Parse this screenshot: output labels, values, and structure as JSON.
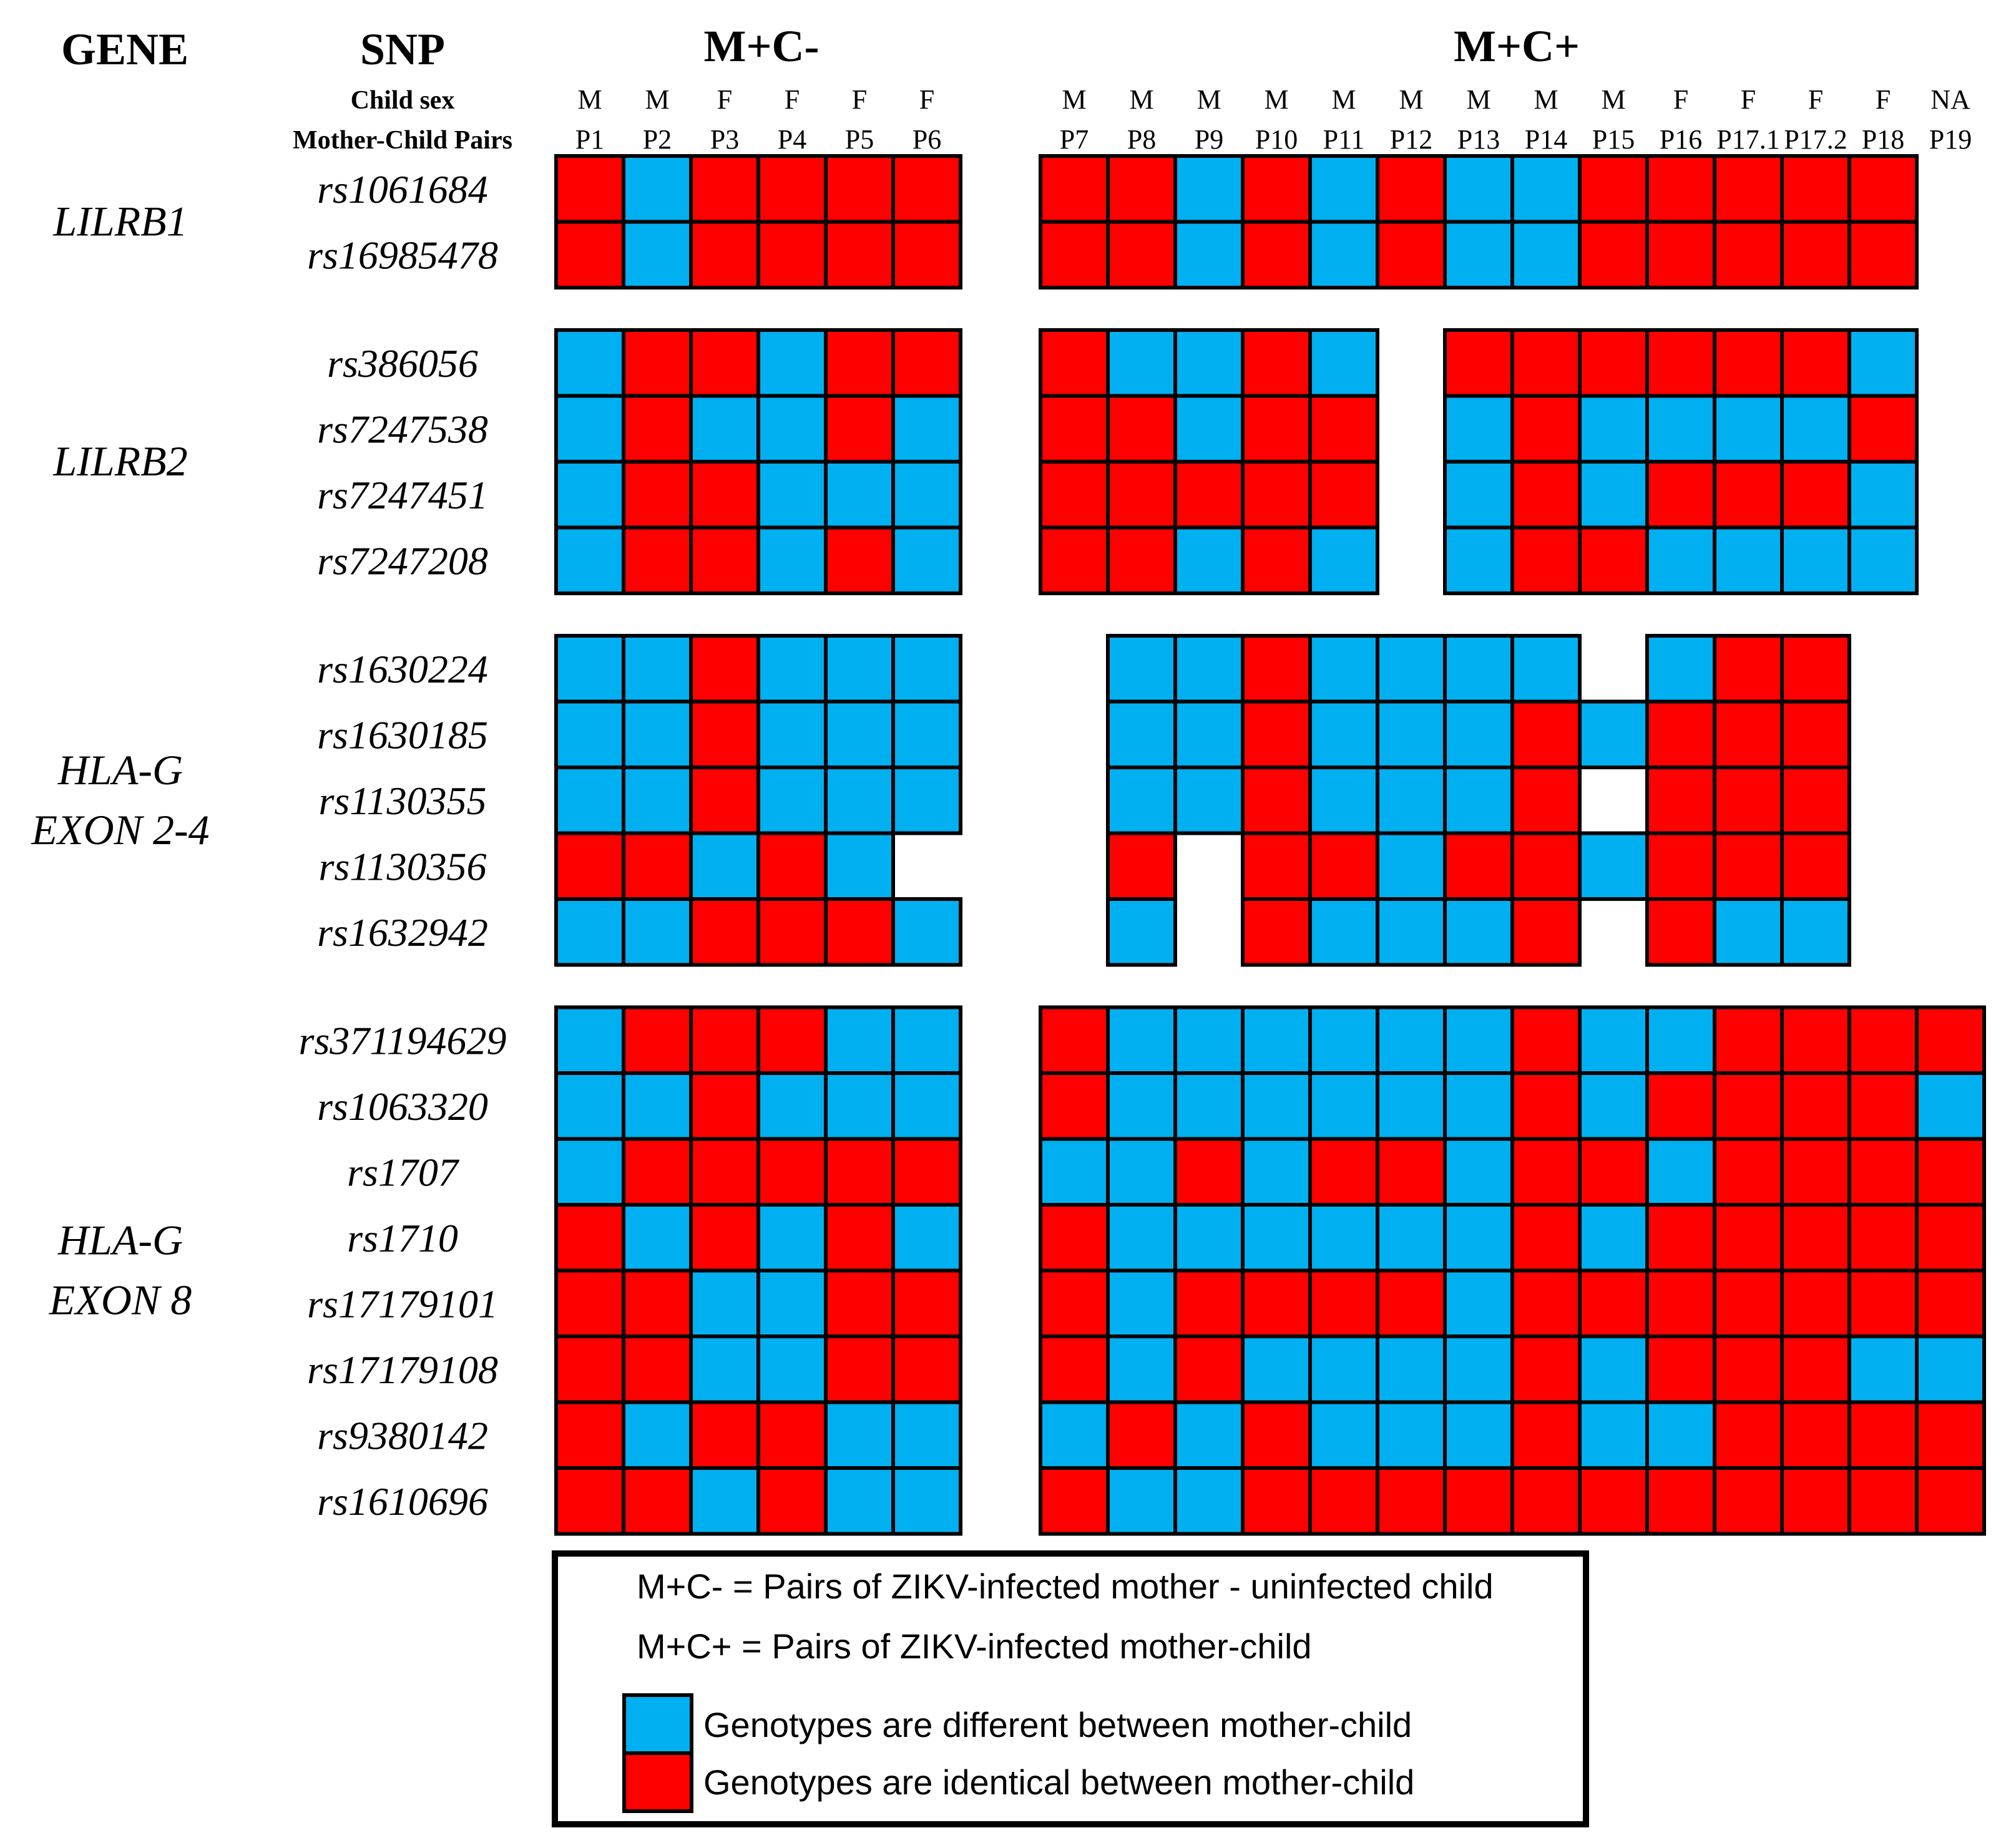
{
  "colors": {
    "different": "#00B0F0",
    "identical": "#FF0000",
    "border": "#000000"
  },
  "chart_data": {
    "type": "heatmap",
    "headers": {
      "gene": "GENE",
      "snp": "SNP",
      "child_sex_label": "Child sex",
      "pairs_label": "Mother-Child Pairs"
    },
    "groups": [
      {
        "label": "M+C-",
        "pairs": [
          "P1",
          "P2",
          "P3",
          "P4",
          "P5",
          "P6"
        ],
        "sex": [
          "M",
          "M",
          "F",
          "F",
          "F",
          "F"
        ]
      },
      {
        "label": "M+C+",
        "pairs": [
          "P7",
          "P8",
          "P9",
          "P10",
          "P11",
          "P12",
          "P13",
          "P14",
          "P15",
          "P16",
          "P17.1",
          "P17.2",
          "P18",
          "P19"
        ],
        "sex": [
          "M",
          "M",
          "M",
          "M",
          "M",
          "M",
          "M",
          "M",
          "M",
          "F",
          "F",
          "F",
          "F",
          "NA"
        ]
      }
    ],
    "value_codes": {
      "R": "identical",
      "B": "different",
      "-": "missing"
    },
    "genes": [
      {
        "name_lines": [
          "LILRB1"
        ],
        "snps": [
          {
            "id": "rs1061684",
            "mc_neg": "RBRRRR",
            "mc_pos": "RRBRBRBBRRRRR-"
          },
          {
            "id": "rs16985478",
            "mc_neg": "RBRRRR",
            "mc_pos": "RRBRBRBBRRRRR-"
          }
        ]
      },
      {
        "name_lines": [
          "LILRB2"
        ],
        "snps": [
          {
            "id": "rs386056",
            "mc_neg": "BRRBRR",
            "mc_pos": "RBBRB-RRRRRRB-"
          },
          {
            "id": "rs7247538",
            "mc_neg": "BRBBRB",
            "mc_pos": "RRBRR-BRBBBBR-"
          },
          {
            "id": "rs7247451",
            "mc_neg": "BRRBBB",
            "mc_pos": "RRRRR-BRBRRRB-"
          },
          {
            "id": "rs7247208",
            "mc_neg": "BRRBRB",
            "mc_pos": "RRBRB-BRRBBBB-"
          }
        ]
      },
      {
        "name_lines": [
          "HLA-G",
          "EXON 2-4"
        ],
        "snps": [
          {
            "id": "rs1630224",
            "mc_neg": "BBRBBB",
            "mc_pos": "-BBRBBBB-BRR--"
          },
          {
            "id": "rs1630185",
            "mc_neg": "BBRBBB",
            "mc_pos": "-BBRBBBRBRRR--"
          },
          {
            "id": "rs1130355",
            "mc_neg": "BBRBBB",
            "mc_pos": "-BBRBBBR-RRR--"
          },
          {
            "id": "rs1130356",
            "mc_neg": "RRBRB-",
            "mc_pos": "-R-RRBRRBRRR--"
          },
          {
            "id": "rs1632942",
            "mc_neg": "BBRRRB",
            "mc_pos": "-B-RBBBR-RBB--"
          }
        ]
      },
      {
        "name_lines": [
          "HLA-G",
          "EXON 8"
        ],
        "snps": [
          {
            "id": "rs371194629",
            "mc_neg": "BRRRBB",
            "mc_pos": "RBBBBBBRBBRRRR"
          },
          {
            "id": "rs1063320",
            "mc_neg": "BBRBBB",
            "mc_pos": "RBBBBBBRBRRRRB"
          },
          {
            "id": "rs1707",
            "mc_neg": "BRRRRR",
            "mc_pos": "BBRBRRBRRBRRRR"
          },
          {
            "id": "rs1710",
            "mc_neg": "RBRBRB",
            "mc_pos": "RBBBBBBRBRRRRR"
          },
          {
            "id": "rs17179101",
            "mc_neg": "RRBBRR",
            "mc_pos": "RBRRRRBRRRRRRR"
          },
          {
            "id": "rs17179108",
            "mc_neg": "RRBBRR",
            "mc_pos": "RBRBBBBRBRRRBB"
          },
          {
            "id": "rs9380142",
            "mc_neg": "RBRRBB",
            "mc_pos": "BRBRBBBRBBRRRR"
          },
          {
            "id": "rs1610696",
            "mc_neg": "RRBRBB",
            "mc_pos": "RBBRRRRRRRRRRR"
          }
        ]
      }
    ],
    "legend": {
      "def_neg": "M+C- = Pairs of ZIKV-infected mother - uninfected child",
      "def_pos": "M+C+ = Pairs of ZIKV-infected mother-child",
      "different": "Genotypes are different between mother-child",
      "identical": "Genotypes are identical between mother-child"
    }
  }
}
